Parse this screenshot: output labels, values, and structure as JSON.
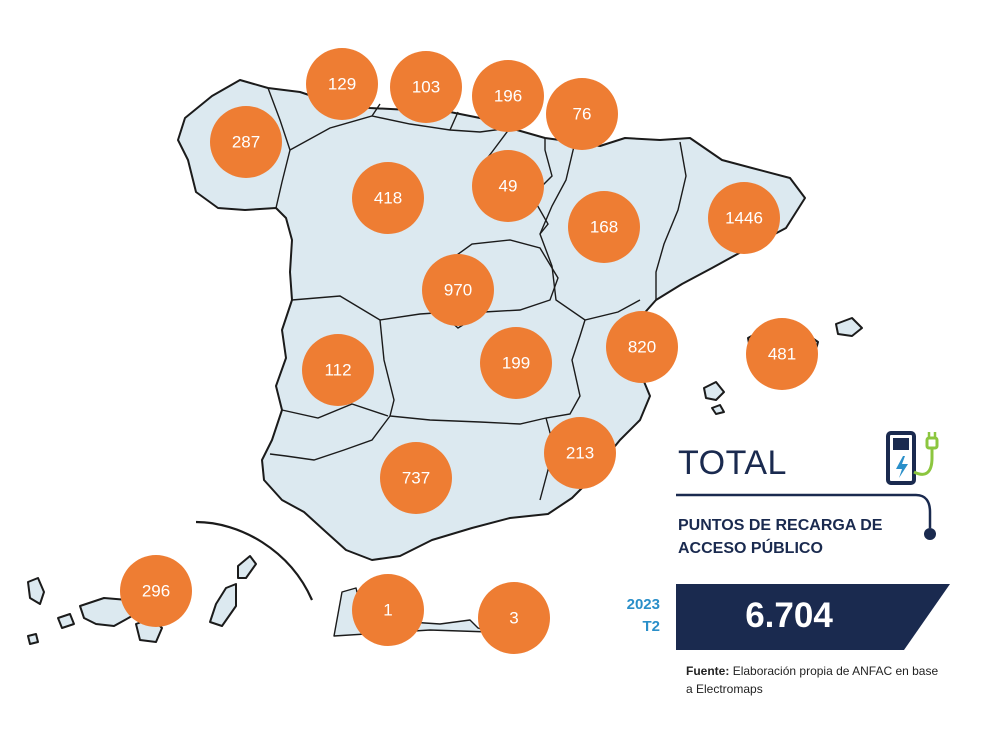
{
  "total": {
    "title": "TOTAL",
    "subtitle": "PUNTOS DE RECARGA DE ACCESO PÚBLICO",
    "year": "2023",
    "quarter": "T2",
    "value": "6.704"
  },
  "source": {
    "label": "Fuente:",
    "text": "Elaboración propia de ANFAC en base a Electromaps"
  },
  "colors": {
    "bubble": "#ee7d33",
    "land": "#dce9f0",
    "navy": "#1a2a4f",
    "accent_blue": "#2a8fc9",
    "charger_green": "#8cc63f"
  },
  "icons": [
    "ev-charger-icon"
  ],
  "regions": [
    {
      "id": "galicia",
      "value": "287"
    },
    {
      "id": "asturias",
      "value": "129"
    },
    {
      "id": "cantabria",
      "value": "103"
    },
    {
      "id": "pais-vasco",
      "value": "196"
    },
    {
      "id": "navarra",
      "value": "76"
    },
    {
      "id": "castilla-y-leon",
      "value": "418"
    },
    {
      "id": "la-rioja",
      "value": "49"
    },
    {
      "id": "aragon",
      "value": "168"
    },
    {
      "id": "cataluna",
      "value": "1446"
    },
    {
      "id": "madrid",
      "value": "970"
    },
    {
      "id": "extremadura",
      "value": "112"
    },
    {
      "id": "castilla-la-mancha",
      "value": "199"
    },
    {
      "id": "comunidad-valenciana",
      "value": "820"
    },
    {
      "id": "baleares",
      "value": "481"
    },
    {
      "id": "murcia",
      "value": "213"
    },
    {
      "id": "andalucia",
      "value": "737"
    },
    {
      "id": "canarias",
      "value": "296"
    },
    {
      "id": "ceuta",
      "value": "1"
    },
    {
      "id": "melilla",
      "value": "3"
    }
  ]
}
